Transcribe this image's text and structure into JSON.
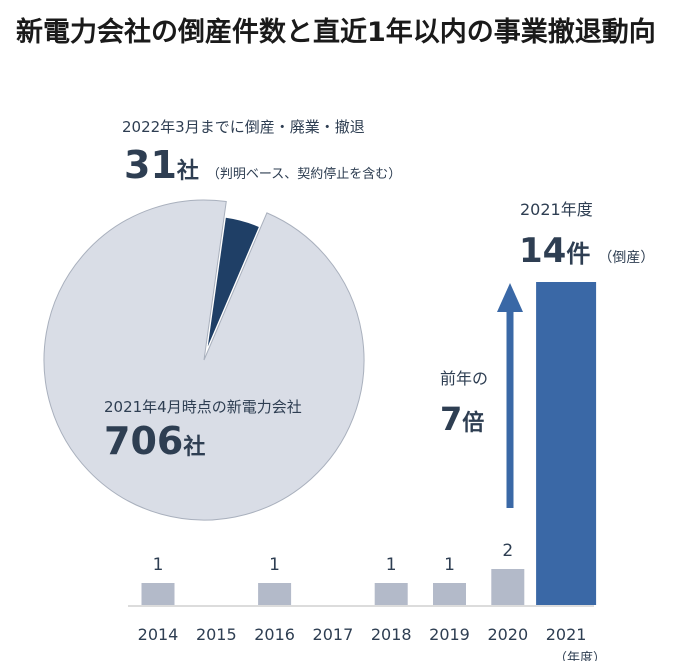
{
  "title": "新電力会社の倒産件数と直近1年以内の事業撤退動向",
  "chart_data": [
    {
      "type": "pie",
      "slices": [
        {
          "label": "2021年4月時点の新電力会社",
          "value": 706,
          "unit": "社",
          "color": "#d9dde6"
        },
        {
          "label": "2022年3月までに倒産・廃業・撤退",
          "value": 31,
          "unit": "社",
          "note": "（判明ベース、契約停止を含む）",
          "color": "#1f3f66"
        }
      ]
    },
    {
      "type": "bar",
      "categories": [
        "2014",
        "2015",
        "2016",
        "2017",
        "2018",
        "2019",
        "2020",
        "2021"
      ],
      "values": [
        1,
        0,
        1,
        0,
        1,
        1,
        2,
        14
      ],
      "data_labels": [
        "1",
        "",
        "1",
        "",
        "1",
        "1",
        "2",
        ""
      ],
      "xunit": "（年度）",
      "highlight": {
        "year_label": "2021年度",
        "value": "14",
        "unit": "件",
        "note": "（倒産）"
      },
      "growth": {
        "line1": "前年の",
        "value": "7",
        "unit": "倍"
      },
      "colors": {
        "bar": "#b3bac9",
        "highlight": "#3a68a6",
        "arrow": "#3a68a6"
      }
    }
  ]
}
